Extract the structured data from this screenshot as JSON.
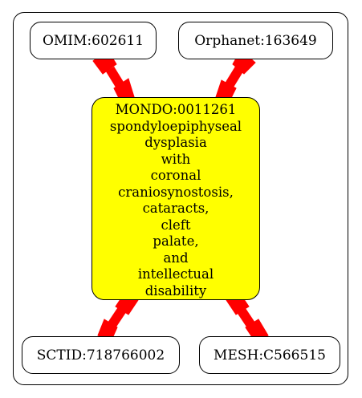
{
  "graph": {
    "center_node": {
      "lines": [
        "MONDO:0011261",
        "spondyloepiphyseal",
        "dysplasia",
        "with",
        "coronal",
        "craniosynostosis,",
        "cataracts,",
        "cleft",
        "palate,",
        "and",
        "intellectual",
        "disability"
      ],
      "fill": "#ffff00"
    },
    "nodes": {
      "omim": "OMIM:602611",
      "orphanet": "Orphanet:163649",
      "sctid": "SCTID:718766002",
      "mesh": "MESH:C566515"
    },
    "edge_color": "#ff0000"
  }
}
